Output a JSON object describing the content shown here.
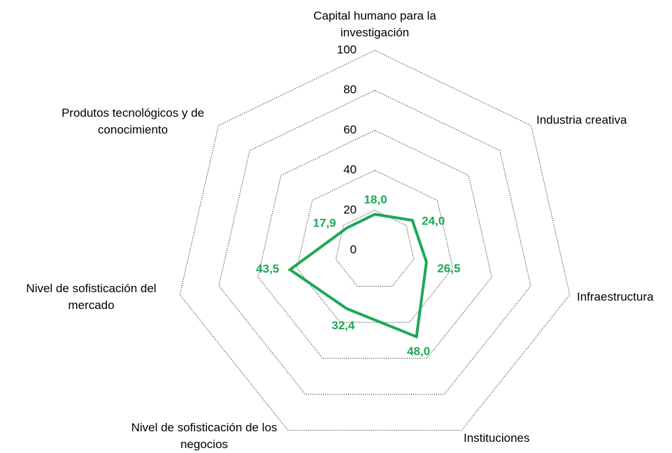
{
  "chart_data": {
    "type": "radar",
    "categories": [
      "Capital humano para la investigación",
      "Industria creativa",
      "Infraestructura",
      "Instituciones",
      "Nivel de sofisticación de los negocios",
      "Nivel de sofisticación del mercado",
      "Produtos tecnológicos y de conocimiento"
    ],
    "series": [
      {
        "name": null,
        "color": "#1aaa55",
        "values": [
          18.0,
          24.0,
          26.5,
          48.0,
          32.4,
          43.5,
          17.9
        ],
        "value_labels": [
          "18,0",
          "24,0",
          "26,5",
          "48,0",
          "32,4",
          "43,5",
          "17,9"
        ]
      }
    ],
    "rlim": [
      0,
      100
    ],
    "rticks": [
      0,
      20,
      40,
      60,
      80,
      100
    ],
    "grid": true
  }
}
